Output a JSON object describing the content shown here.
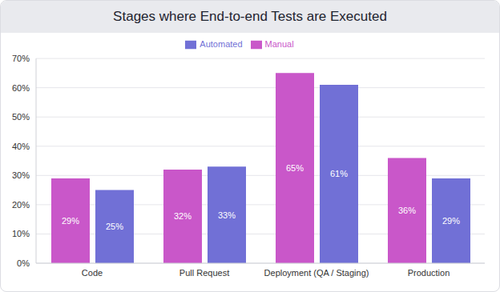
{
  "chart_data": {
    "type": "bar",
    "title": "Stages where End-to-end Tests are Executed",
    "categories": [
      "Code",
      "Pull Request",
      "Deployment (QA / Staging)",
      "Production"
    ],
    "series": [
      {
        "name": "Manual",
        "color": "#c957c9",
        "values": [
          29,
          32,
          65,
          36
        ],
        "value_labels": [
          "29%",
          "32%",
          "65%",
          "36%"
        ]
      },
      {
        "name": "Automated",
        "color": "#7170d6",
        "values": [
          25,
          33,
          61,
          29
        ],
        "value_labels": [
          "25%",
          "33%",
          "61%",
          "29%"
        ]
      }
    ],
    "ylim": [
      0,
      70
    ],
    "yticks": [
      {
        "value": 0,
        "label": "0%"
      },
      {
        "value": 10,
        "label": "10%"
      },
      {
        "value": 20,
        "label": "20%"
      },
      {
        "value": 30,
        "label": "30%"
      },
      {
        "value": 40,
        "label": "40%"
      },
      {
        "value": 50,
        "label": "50%"
      },
      {
        "value": 60,
        "label": "60%"
      },
      {
        "value": 70,
        "label": "70%"
      }
    ],
    "grid": true,
    "legend": "top",
    "data_labels": true
  }
}
